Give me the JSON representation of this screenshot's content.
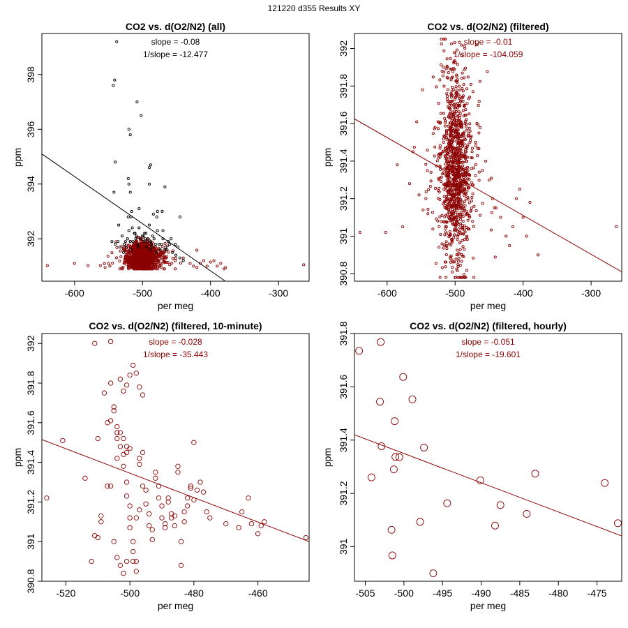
{
  "figure": {
    "suptitle": "121220   d355   Results XY",
    "colors": {
      "main": "#8b0000",
      "excluded": "#000000",
      "axis": "#000000"
    }
  },
  "chart_data": [
    {
      "id": "all",
      "type": "scatter",
      "title": "CO2 vs. d(O2/N2) (all)",
      "xlabel": "per meg",
      "ylabel": "ppm",
      "xlim": [
        -648,
        -255
      ],
      "ylim": [
        390.45,
        399.5
      ],
      "xticks": [
        -600,
        -500,
        -400,
        -300
      ],
      "yticks": [
        392,
        394,
        396,
        398
      ],
      "annotations": [
        "slope = -0.08",
        "1/slope = -12.477"
      ],
      "annotation_color": "#000000",
      "fit_line": {
        "x": [
          -648,
          -378
        ],
        "y": [
          395.1,
          390.45
        ],
        "color": "#000000"
      },
      "marker_radius": 1.6,
      "series": [
        {
          "name": "excluded",
          "color": "#000000",
          "x": [
            -538,
            -541,
            -543,
            -508,
            -502,
            -520,
            -518,
            -540,
            -521,
            -520,
            -488,
            -490,
            -490,
            -518,
            -467,
            -516,
            -517,
            -505,
            -484,
            -478,
            -445,
            -542,
            -521,
            -479,
            -471,
            -535,
            -470,
            -520,
            -515,
            -512,
            -505,
            -495,
            -490,
            -485,
            -478,
            -470,
            -462,
            -458,
            -452,
            -448,
            -530,
            -525,
            -522,
            -518,
            -511,
            -507,
            -503,
            -499,
            -496,
            -493,
            -488,
            -483,
            -476,
            -472,
            -466,
            -460,
            -545,
            -540,
            -536,
            -533,
            -527,
            -524,
            -514,
            -509,
            -497,
            -494,
            -487,
            -481,
            -474,
            -468,
            -464,
            -456,
            -451,
            -445,
            -440,
            -528,
            -517,
            -506,
            -498,
            -489,
            -480,
            -500,
            -510,
            -492,
            -486
          ],
          "y": [
            399.2,
            397.8,
            397.6,
            397.0,
            396.5,
            396.0,
            395.8,
            394.8,
            394.2,
            394.0,
            394.7,
            394.6,
            394.0,
            393.7,
            393.9,
            393.0,
            392.8,
            393.1,
            392.9,
            393.0,
            392.8,
            393.7,
            392.8,
            392.8,
            393.0,
            392.5,
            392.3,
            392.3,
            392.4,
            392.2,
            392.4,
            392.2,
            392.5,
            392.1,
            392.3,
            392.0,
            391.9,
            392.0,
            391.8,
            391.7,
            392.1,
            391.9,
            392.0,
            391.9,
            392.2,
            391.8,
            392.0,
            392.1,
            392.0,
            391.9,
            391.9,
            392.0,
            391.8,
            391.8,
            391.7,
            391.8,
            391.9,
            391.8,
            391.9,
            391.7,
            391.8,
            391.7,
            391.9,
            392.1,
            392.2,
            391.7,
            391.8,
            391.8,
            391.6,
            391.6,
            391.6,
            391.5,
            391.4,
            391.3,
            391.2,
            391.5,
            391.6,
            391.7,
            391.9,
            391.6,
            391.5,
            392.1,
            392.0,
            392.0,
            391.7
          ]
        },
        {
          "name": "filtered",
          "color": "#8b0000",
          "generated": {
            "count": 1150,
            "x_mean": -500,
            "x_sd": 10,
            "y_mean": 391.35,
            "y_sd": 0.26,
            "y_min": 390.9,
            "y_max": 392.05,
            "x_min": -560,
            "x_max": -420,
            "seed": 11
          },
          "x": [
            -640,
            -580,
            -562,
            -600,
            -548,
            -460,
            -452,
            -440,
            -430,
            -425,
            -420,
            -415,
            -410,
            -405,
            -400,
            -395,
            -390,
            -385,
            -380,
            -378,
            -263,
            -550,
            -555,
            -470,
            -468,
            -474,
            -466
          ],
          "y": [
            391.02,
            391.02,
            391.02,
            391.1,
            391.0,
            391.05,
            391.2,
            391.3,
            391.1,
            391.0,
            390.95,
            391.1,
            391.2,
            391.0,
            391.15,
            391.2,
            391.0,
            391.1,
            390.9,
            390.95,
            391.05,
            391.1,
            390.95,
            391.4,
            391.5,
            391.35,
            391.6
          ]
        }
      ]
    },
    {
      "id": "filtered",
      "type": "scatter",
      "title": "CO2 vs. d(O2/N2) (filtered)",
      "xlabel": "per meg",
      "ylabel": "ppm",
      "xlim": [
        -648,
        -255
      ],
      "ylim": [
        390.76,
        392.08
      ],
      "xticks": [
        -600,
        -500,
        -400,
        -300
      ],
      "yticks": [
        390.8,
        391.0,
        391.2,
        391.4,
        391.6,
        391.8,
        392.0
      ],
      "annotations": [
        "slope = -0.01",
        "1/slope = -104.059"
      ],
      "annotation_color": "#8b0000",
      "fit_line": {
        "x": [
          -648,
          -255
        ],
        "y": [
          391.625,
          390.81
        ],
        "color": "#8b0000"
      },
      "marker_radius": 1.6,
      "series": [
        {
          "name": "filtered",
          "color": "#8b0000",
          "generated": {
            "count": 1100,
            "x_mean": -500,
            "x_sd": 10,
            "y_mean": 391.35,
            "y_sd": 0.26,
            "y_min": 390.78,
            "y_max": 392.05,
            "x_min": -560,
            "x_max": -420,
            "seed": 23
          },
          "x": [
            -640,
            -602,
            -585,
            -577,
            -567,
            -562,
            -553,
            -548,
            -543,
            -540,
            -455,
            -450,
            -445,
            -440,
            -433,
            -425,
            -420,
            -415,
            -410,
            -405,
            -400,
            -395,
            -390,
            -378,
            -263,
            -470,
            -468,
            -475,
            -465,
            -460
          ],
          "y": [
            391.02,
            391.02,
            391.38,
            391.05,
            391.28,
            391.45,
            391.22,
            391.78,
            391.2,
            391.12,
            391.4,
            391.3,
            391.2,
            391.15,
            391.1,
            391.0,
            390.95,
            391.05,
            391.2,
            391.25,
            391.1,
            391.0,
            391.18,
            390.9,
            391.05,
            391.5,
            391.6,
            391.45,
            391.55,
            391.35
          ]
        }
      ]
    },
    {
      "id": "tenmin",
      "type": "scatter",
      "title": "CO2 vs. d(O2/N2) (filtered, 10-minute)",
      "xlabel": "per meg",
      "ylabel": "ppm",
      "xlim": [
        -527.5,
        -444
      ],
      "ylim": [
        390.8,
        392.05
      ],
      "xticks": [
        -520,
        -500,
        -480,
        -460
      ],
      "yticks": [
        390.8,
        391.0,
        391.2,
        391.4,
        391.6,
        391.8,
        392.0
      ],
      "annotations": [
        "slope = -0.028",
        "1/slope = -35.443"
      ],
      "annotation_color": "#8b0000",
      "fit_line": {
        "x": [
          -527.5,
          -444
        ],
        "y": [
          391.515,
          391.0
        ],
        "color": "#8b0000"
      },
      "marker_radius": 3.2,
      "series": [
        {
          "name": "10-minute means",
          "color": "#8b0000",
          "x": [
            -511,
            -506,
            -526,
            -521,
            -514,
            -509,
            -510,
            -507,
            -506,
            -505,
            -505,
            -504,
            -504,
            -503,
            -502,
            -502,
            -501,
            -501,
            -500,
            -500,
            -500,
            -499,
            -499,
            -498,
            -498,
            -497,
            -497,
            -496,
            -496,
            -495,
            -495,
            -494,
            -494,
            -493,
            -493,
            -492,
            -492,
            -491,
            -491,
            -490,
            -490,
            -489,
            -489,
            -488,
            -488,
            -487,
            -487,
            -486,
            -486,
            -485,
            -485,
            -484,
            -484,
            -483,
            -483,
            -482,
            -482,
            -481,
            -481,
            -480,
            -480,
            -479,
            -478,
            -477,
            -476,
            -475,
            -470,
            -466,
            -465,
            -463,
            -462,
            -460,
            -459,
            -458,
            -445,
            -508,
            -506,
            -503,
            -502,
            -501,
            -500,
            -499,
            -498,
            -497,
            -496,
            -504,
            -503,
            -502,
            -501,
            -500,
            -505,
            -504,
            -503,
            -502,
            -501,
            -499,
            -498,
            -497,
            -510,
            -509,
            -511,
            -512,
            -507,
            -506,
            -504,
            -501
          ],
          "y": [
            392.0,
            392.01,
            391.22,
            391.51,
            391.32,
            391.13,
            391.52,
            391.6,
            391.61,
            391.68,
            391.66,
            391.55,
            391.52,
            391.48,
            391.44,
            391.38,
            391.3,
            391.23,
            391.18,
            391.12,
            391.07,
            391.0,
            390.95,
            390.9,
            390.85,
            391.39,
            391.42,
            391.45,
            391.28,
            391.26,
            391.19,
            391.14,
            391.08,
            391.06,
            391.01,
            391.35,
            391.32,
            391.28,
            391.22,
            391.18,
            391.12,
            391.09,
            391.07,
            391.2,
            391.22,
            391.14,
            391.12,
            391.13,
            391.08,
            391.35,
            391.38,
            391.0,
            390.88,
            391.1,
            391.15,
            391.22,
            391.18,
            391.28,
            391.27,
            391.5,
            391.21,
            391.26,
            391.3,
            391.25,
            391.15,
            391.12,
            391.09,
            391.07,
            391.15,
            391.22,
            391.09,
            391.04,
            391.08,
            391.1,
            391.02,
            391.75,
            391.8,
            391.82,
            391.76,
            391.79,
            391.84,
            391.89,
            391.85,
            391.78,
            391.74,
            391.58,
            391.55,
            391.52,
            391.48,
            391.47,
            391.0,
            390.92,
            390.88,
            390.84,
            390.9,
            390.9,
            391.12,
            391.16,
            391.02,
            391.1,
            391.03,
            390.9,
            391.28,
            391.28,
            391.42,
            391.45
          ],
          "lines_only": false
        }
      ]
    },
    {
      "id": "hourly",
      "type": "scatter",
      "title": "CO2 vs. d(O2/N2) (filtered, hourly)",
      "xlabel": "per meg",
      "ylabel": "ppm",
      "xlim": [
        -506.4,
        -471.8
      ],
      "ylim": [
        390.87,
        391.8
      ],
      "xticks": [
        -505,
        -500,
        -495,
        -490,
        -485,
        -480,
        -475
      ],
      "yticks": [
        391.0,
        391.2,
        391.4,
        391.6,
        391.8
      ],
      "annotations": [
        "slope = -0.051",
        "1/slope = -19.601"
      ],
      "annotation_color": "#8b0000",
      "fit_line": {
        "x": [
          -506.4,
          -471.8
        ],
        "y": [
          391.42,
          391.04
        ],
        "color": "#8b0000"
      },
      "marker_radius": 5,
      "series": [
        {
          "name": "hourly means",
          "color": "#8b0000",
          "x": [
            -505.8,
            -503.0,
            -500.1,
            -503.1,
            -498.9,
            -501.2,
            -502.9,
            -497.4,
            -501.1,
            -500.6,
            -504.2,
            -501.3,
            -490.1,
            -483.0,
            -474.0,
            -472.3,
            -494.4,
            -487.5,
            -484.1,
            -488.2,
            -497.9,
            -501.6,
            -501.5,
            -496.2
          ],
          "y": [
            391.735,
            391.768,
            391.637,
            391.544,
            391.553,
            391.471,
            391.377,
            391.372,
            391.337,
            391.336,
            391.26,
            391.29,
            391.249,
            391.274,
            391.239,
            391.088,
            391.163,
            391.156,
            391.123,
            391.079,
            391.093,
            391.063,
            390.967,
            390.9
          ]
        }
      ]
    }
  ]
}
